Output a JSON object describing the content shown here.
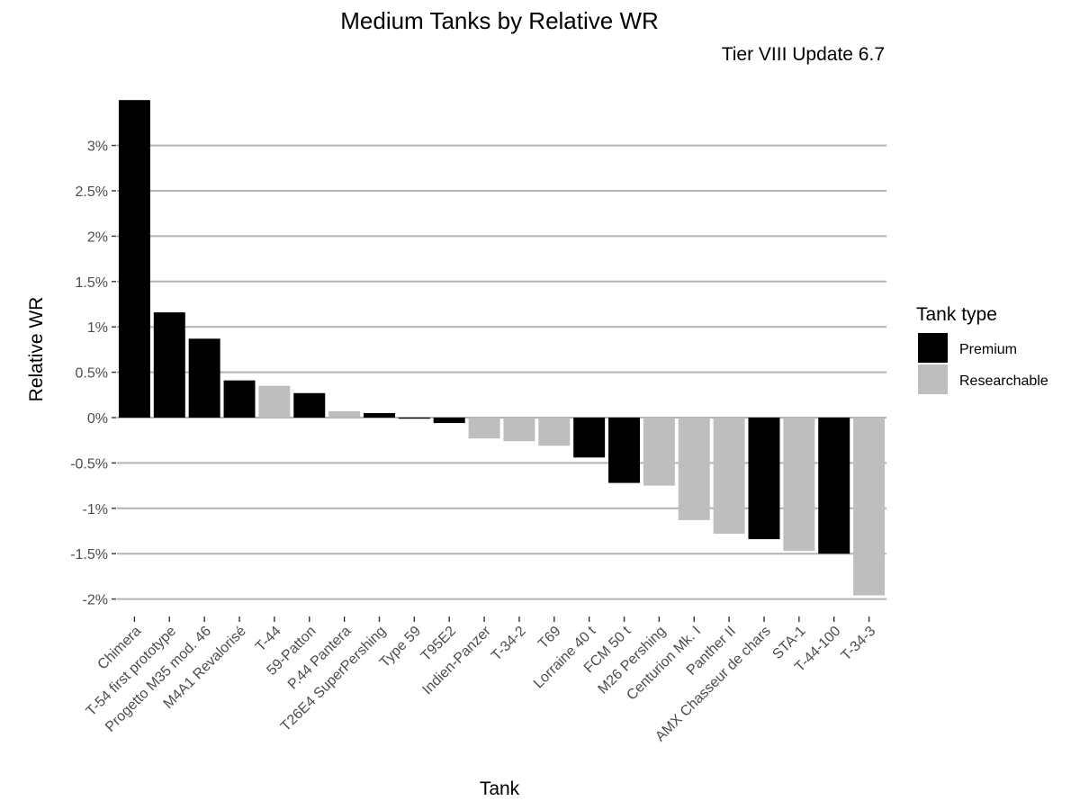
{
  "chart_data": {
    "type": "bar",
    "title": "Medium Tanks by Relative WR",
    "subtitle": "Tier VIII Update 6.7",
    "xlabel": "Tank",
    "ylabel": "Relative WR",
    "ylim": [
      -2.2,
      3.55
    ],
    "y_ticks": [
      3,
      2.5,
      2,
      1.5,
      1,
      0.5,
      0,
      -0.5,
      -1,
      -1.5,
      -2
    ],
    "y_tick_labels": [
      "3%",
      "2.5%",
      "2%",
      "1.5%",
      "1%",
      "0.5%",
      "0%",
      "-0.5%",
      "-1%",
      "-1.5%",
      "-2%"
    ],
    "grid": true,
    "legend": {
      "title": "Tank type",
      "placement": "right",
      "items": [
        {
          "name": "Premium",
          "color": "#000000"
        },
        {
          "name": "Researchable",
          "color": "#bebebe"
        }
      ]
    },
    "categories": [
      "Chimera",
      "T-54 first prototype",
      "Progetto M35 mod. 46",
      "M4A1 Revalorisé",
      "T-44",
      "59-Patton",
      "P.44 Pantera",
      "T26E4 SuperPershing",
      "Type 59",
      "T95E2",
      "Indien-Panzer",
      "T-34-2",
      "T69",
      "Lorraine 40 t",
      "FCM 50 t",
      "M26 Pershing",
      "Centurion Mk. I",
      "Panther II",
      "AMX Chasseur de chars",
      "STA-1",
      "T-44-100",
      "T-34-3"
    ],
    "values": [
      3.5,
      1.16,
      0.87,
      0.41,
      0.35,
      0.27,
      0.07,
      0.05,
      -0.01,
      -0.06,
      -0.23,
      -0.26,
      -0.31,
      -0.44,
      -0.72,
      -0.75,
      -1.13,
      -1.28,
      -1.34,
      -1.47,
      -1.5,
      -1.96
    ],
    "types": [
      "Premium",
      "Premium",
      "Premium",
      "Premium",
      "Researchable",
      "Premium",
      "Researchable",
      "Premium",
      "Premium",
      "Premium",
      "Researchable",
      "Researchable",
      "Researchable",
      "Premium",
      "Premium",
      "Researchable",
      "Researchable",
      "Researchable",
      "Premium",
      "Researchable",
      "Premium",
      "Researchable"
    ]
  }
}
